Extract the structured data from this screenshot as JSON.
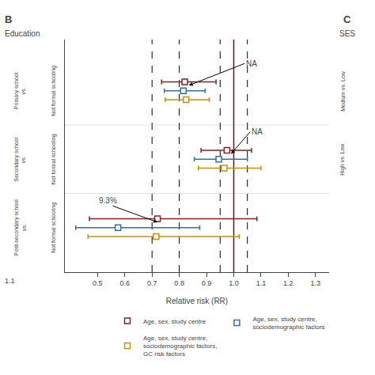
{
  "chart_data": {
    "type": "forest",
    "title_left": "B",
    "subtitle_left": "Education",
    "title_right": "C",
    "subtitle_right": "SES",
    "corner_text": "1.1",
    "xlabel": "Relative risk (RR)",
    "xlim": [
      0.38,
      1.35
    ],
    "xticks": [
      0.5,
      0.6,
      0.7,
      0.8,
      0.9,
      {
        "value": 1.0,
        "label": "1.0"
      },
      1.1,
      1.2,
      1.3
    ],
    "grid": false,
    "legend": "lower right",
    "marker": "square",
    "categories": [
      "Primary school\nvs.",
      "Secondary school\nvs.",
      "Post-secondary school\nvs."
    ],
    "comparison_labels": [
      "Not formal schooling",
      "Not formal schooling",
      "Not formal schooling"
    ],
    "right_labels": [
      "Medium vs. Low",
      "High vs. Low",
      null
    ],
    "series": [
      {
        "name": "Age, sex, study centre",
        "color": "#8B2020",
        "values": [
          0.82,
          0.975,
          0.72
        ],
        "lo": [
          0.735,
          0.88,
          0.47
        ],
        "hi": [
          0.935,
          1.065,
          1.085
        ]
      },
      {
        "name": "Age, sex, study centre,\nsociodemographic factors",
        "color": "#3070B0",
        "values": [
          0.815,
          0.945,
          0.575
        ],
        "lo": [
          0.745,
          0.855,
          0.42
        ],
        "hi": [
          0.895,
          1.05,
          0.875
        ]
      },
      {
        "name": "Age, sex, study centre,\nsociodemographic factors,\nGC risk factors",
        "color": "#C8900A",
        "values": [
          0.825,
          0.965,
          0.715
        ],
        "lo": [
          0.748,
          0.87,
          0.465
        ],
        "hi": [
          0.91,
          1.1,
          1.02
        ]
      }
    ],
    "reference_lines": [
      {
        "x": 1.0,
        "line_style": "solid",
        "color": "#6B1515"
      },
      {
        "x": 0.7,
        "line_style": "dashed",
        "color": "black"
      },
      {
        "x": 0.8,
        "line_style": "dashed",
        "color": "black"
      },
      {
        "x": 0.95,
        "line_style": "dashed",
        "color": "black"
      },
      {
        "x": 1.05,
        "line_style": "dashed",
        "color": "black"
      }
    ],
    "annotations": [
      {
        "text": "NA",
        "category": "Primary school\nvs.",
        "x": 0.835,
        "text_x": 1.04
      },
      {
        "text": "NA",
        "category": "Secondary school\nvs.",
        "x": 0.99,
        "text_x": 1.06
      },
      {
        "text": "9.3%",
        "category": "Post-secondary school\nvs.",
        "x": 0.72,
        "text_x": 0.5
      }
    ]
  }
}
